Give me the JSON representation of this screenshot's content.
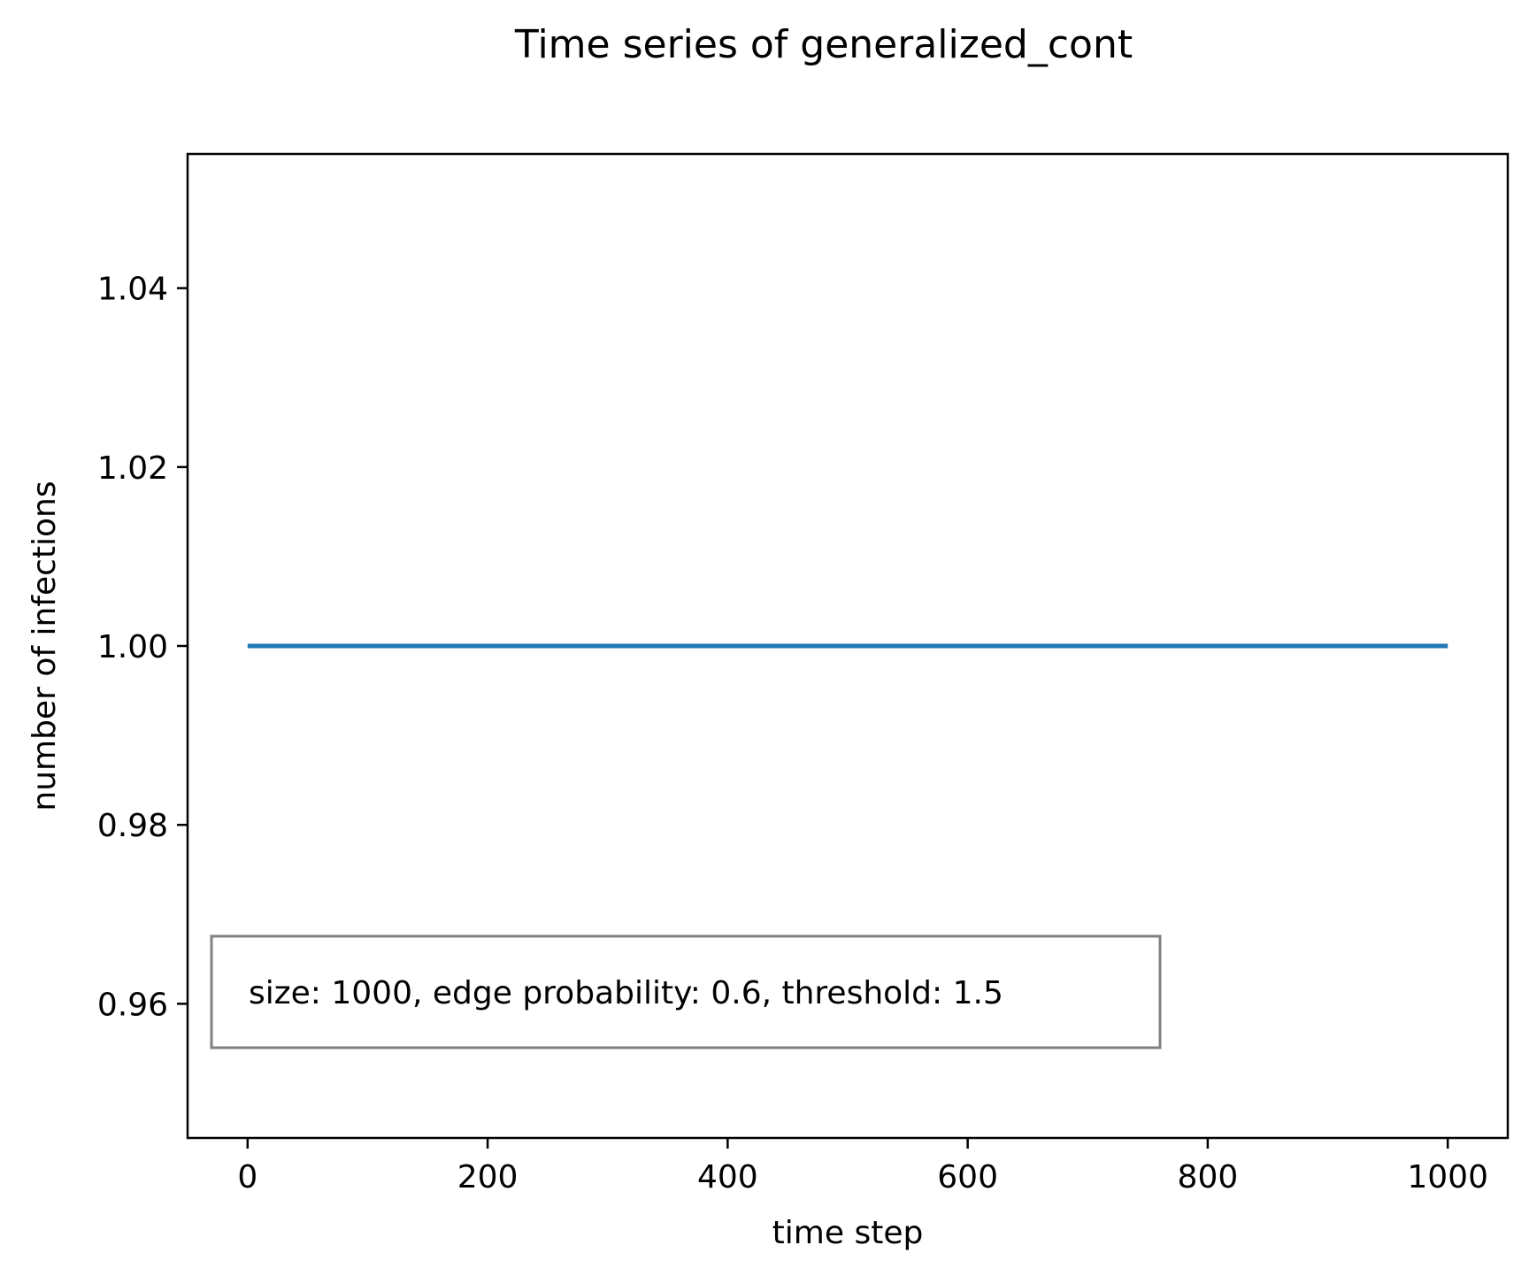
{
  "chart_data": {
    "type": "line",
    "title": "Time series of generalized_cont",
    "xlabel": "time step",
    "ylabel": "number of infections",
    "xlim": [
      -50,
      1050
    ],
    "ylim": [
      0.945,
      1.055
    ],
    "xticks": [
      0,
      200,
      400,
      600,
      800,
      1000
    ],
    "xtick_labels": [
      "0",
      "200",
      "400",
      "600",
      "800",
      "1000"
    ],
    "yticks": [
      0.96,
      0.98,
      1.0,
      1.02,
      1.04
    ],
    "ytick_labels": [
      "0.96",
      "0.98",
      "1.00",
      "1.02",
      "1.04"
    ],
    "grid": false,
    "legend": "none",
    "series": [
      {
        "color": "#1f77b4",
        "x": [
          0,
          1000
        ],
        "y": [
          1.0,
          1.0
        ]
      }
    ],
    "annotation": {
      "text": "size: 1000, edge probability: 0.6, threshold: 1.5",
      "placement": "lower-left",
      "border_color": "#808080"
    }
  }
}
